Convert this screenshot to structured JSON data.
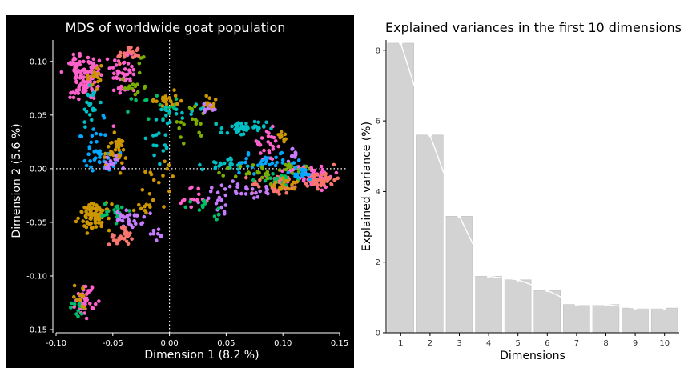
{
  "chart_data": [
    {
      "type": "scatter",
      "title": "MDS of worldwide goat population",
      "xlabel": "Dimension 1 (8.2 %)",
      "ylabel": "Dimension 2 (5.6 %)",
      "xlim": [
        -0.1,
        0.15
      ],
      "ylim": [
        -0.15,
        0.12
      ],
      "xticks": [
        "-0.10",
        "-0.05",
        "0.00",
        "0.05",
        "0.10",
        "0.15"
      ],
      "yticks": [
        "-0.15",
        "-0.10",
        "-0.05",
        "0.00",
        "0.05",
        "0.10"
      ],
      "reference_lines": {
        "x": 0,
        "y": 0,
        "style": "dotted"
      },
      "background": "#000000",
      "legend": "none",
      "colors": [
        "#F8766D",
        "#CD9600",
        "#7CAE00",
        "#00BE67",
        "#00BFC4",
        "#00A9FF",
        "#C77CFF",
        "#FF61CC"
      ],
      "clusters": [
        {
          "x": -0.083,
          "y": 0.095,
          "sx": 0.003,
          "sy": 0.008,
          "n": 30,
          "color": 7
        },
        {
          "x": -0.071,
          "y": 0.085,
          "sx": 0.006,
          "sy": 0.011,
          "n": 70,
          "color": 7
        },
        {
          "x": -0.07,
          "y": 0.06,
          "sx": 0.004,
          "sy": 0.012,
          "n": 22,
          "color": 4
        },
        {
          "x": -0.066,
          "y": 0.085,
          "sx": 0.004,
          "sy": 0.008,
          "n": 14,
          "color": 1
        },
        {
          "x": -0.083,
          "y": 0.07,
          "sx": 0.004,
          "sy": 0.003,
          "n": 10,
          "color": 7
        },
        {
          "x": -0.04,
          "y": 0.09,
          "sx": 0.006,
          "sy": 0.012,
          "n": 50,
          "color": 7
        },
        {
          "x": -0.036,
          "y": 0.107,
          "sx": 0.005,
          "sy": 0.004,
          "n": 22,
          "color": 0
        },
        {
          "x": -0.03,
          "y": 0.08,
          "sx": 0.008,
          "sy": 0.01,
          "n": 16,
          "color": 2
        },
        {
          "x": -0.012,
          "y": 0.058,
          "sx": 0.01,
          "sy": 0.006,
          "n": 20,
          "color": 3
        },
        {
          "x": -0.004,
          "y": 0.064,
          "sx": 0.006,
          "sy": 0.004,
          "n": 22,
          "color": 1
        },
        {
          "x": 0.018,
          "y": 0.055,
          "sx": 0.01,
          "sy": 0.005,
          "n": 14,
          "color": 4
        },
        {
          "x": 0.02,
          "y": 0.042,
          "sx": 0.01,
          "sy": 0.008,
          "n": 18,
          "color": 2
        },
        {
          "x": 0.036,
          "y": 0.062,
          "sx": 0.004,
          "sy": 0.004,
          "n": 14,
          "color": 1
        },
        {
          "x": 0.034,
          "y": 0.055,
          "sx": 0.004,
          "sy": 0.003,
          "n": 10,
          "color": 6
        },
        {
          "x": -0.06,
          "y": 0.01,
          "sx": 0.007,
          "sy": 0.006,
          "n": 30,
          "color": 5
        },
        {
          "x": -0.048,
          "y": 0.016,
          "sx": 0.005,
          "sy": 0.007,
          "n": 40,
          "color": 1
        },
        {
          "x": -0.052,
          "y": 0.005,
          "sx": 0.004,
          "sy": 0.004,
          "n": 14,
          "color": 6
        },
        {
          "x": -0.065,
          "y": 0.035,
          "sx": 0.006,
          "sy": 0.012,
          "n": 12,
          "color": 5
        },
        {
          "x": -0.066,
          "y": -0.045,
          "sx": 0.007,
          "sy": 0.006,
          "n": 80,
          "color": 1
        },
        {
          "x": -0.047,
          "y": -0.04,
          "sx": 0.006,
          "sy": 0.004,
          "n": 18,
          "color": 3
        },
        {
          "x": -0.035,
          "y": -0.047,
          "sx": 0.006,
          "sy": 0.004,
          "n": 30,
          "color": 6
        },
        {
          "x": -0.043,
          "y": -0.063,
          "sx": 0.005,
          "sy": 0.004,
          "n": 28,
          "color": 0
        },
        {
          "x": -0.012,
          "y": -0.061,
          "sx": 0.003,
          "sy": 0.003,
          "n": 8,
          "color": 6
        },
        {
          "x": -0.02,
          "y": -0.035,
          "sx": 0.005,
          "sy": 0.004,
          "n": 10,
          "color": 1
        },
        {
          "x": -0.074,
          "y": -0.122,
          "sx": 0.004,
          "sy": 0.008,
          "n": 40,
          "color": 7
        },
        {
          "x": -0.08,
          "y": -0.132,
          "sx": 0.003,
          "sy": 0.004,
          "n": 10,
          "color": 3
        },
        {
          "x": -0.078,
          "y": -0.118,
          "sx": 0.003,
          "sy": 0.006,
          "n": 10,
          "color": 1
        },
        {
          "x": 0.065,
          "y": 0.037,
          "sx": 0.01,
          "sy": 0.004,
          "n": 40,
          "color": 4
        },
        {
          "x": 0.085,
          "y": 0.022,
          "sx": 0.008,
          "sy": 0.008,
          "n": 24,
          "color": 7
        },
        {
          "x": 0.1,
          "y": 0.03,
          "sx": 0.003,
          "sy": 0.003,
          "n": 8,
          "color": 1
        },
        {
          "x": 0.11,
          "y": 0.013,
          "sx": 0.003,
          "sy": 0.003,
          "n": 10,
          "color": 6
        },
        {
          "x": 0.05,
          "y": 0.005,
          "sx": 0.01,
          "sy": 0.003,
          "n": 25,
          "color": 4
        },
        {
          "x": 0.085,
          "y": 0.005,
          "sx": 0.015,
          "sy": 0.004,
          "n": 30,
          "color": 5
        },
        {
          "x": 0.11,
          "y": 0.0,
          "sx": 0.006,
          "sy": 0.003,
          "n": 20,
          "color": 2
        },
        {
          "x": 0.125,
          "y": -0.007,
          "sx": 0.01,
          "sy": 0.005,
          "n": 60,
          "color": 7
        },
        {
          "x": 0.135,
          "y": -0.01,
          "sx": 0.006,
          "sy": 0.004,
          "n": 40,
          "color": 0
        },
        {
          "x": 0.095,
          "y": -0.015,
          "sx": 0.012,
          "sy": 0.005,
          "n": 40,
          "color": 0
        },
        {
          "x": 0.095,
          "y": -0.01,
          "sx": 0.008,
          "sy": 0.003,
          "n": 20,
          "color": 3
        },
        {
          "x": 0.075,
          "y": -0.005,
          "sx": 0.01,
          "sy": 0.005,
          "n": 20,
          "color": 2
        },
        {
          "x": 0.07,
          "y": -0.02,
          "sx": 0.012,
          "sy": 0.004,
          "n": 25,
          "color": 6
        },
        {
          "x": 0.115,
          "y": -0.005,
          "sx": 0.008,
          "sy": 0.003,
          "n": 20,
          "color": 5
        },
        {
          "x": 0.105,
          "y": -0.015,
          "sx": 0.008,
          "sy": 0.003,
          "n": 15,
          "color": 1
        },
        {
          "x": 0.045,
          "y": -0.03,
          "sx": 0.008,
          "sy": 0.008,
          "n": 16,
          "color": 6
        },
        {
          "x": 0.02,
          "y": -0.025,
          "sx": 0.008,
          "sy": 0.006,
          "n": 14,
          "color": 7
        },
        {
          "x": 0.03,
          "y": -0.04,
          "sx": 0.01,
          "sy": 0.006,
          "n": 12,
          "color": 3
        },
        {
          "x": -0.005,
          "y": 0.03,
          "sx": 0.006,
          "sy": 0.012,
          "n": 18,
          "color": 4
        },
        {
          "x": -0.01,
          "y": -0.01,
          "sx": 0.008,
          "sy": 0.01,
          "n": 14,
          "color": 1
        }
      ]
    },
    {
      "type": "bar",
      "title": "Explained variances in the first 10 dimensions",
      "xlabel": "Dimensions",
      "ylabel": "Explained variance (%)",
      "categories": [
        "1",
        "2",
        "3",
        "4",
        "5",
        "6",
        "7",
        "8",
        "9",
        "10"
      ],
      "values": [
        8.2,
        5.6,
        3.3,
        1.6,
        1.5,
        1.2,
        0.8,
        0.8,
        0.7,
        0.7
      ],
      "ylim": [
        0,
        8.2
      ],
      "yticks": [
        "0",
        "2",
        "4",
        "6",
        "8"
      ],
      "line_overlay": true,
      "bar_color": "#d3d3d3",
      "line_color": "#ffffff"
    }
  ]
}
